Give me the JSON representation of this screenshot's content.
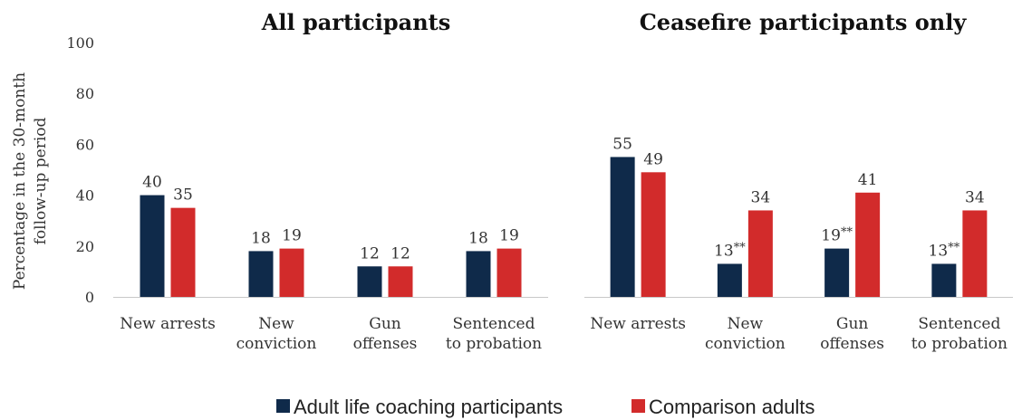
{
  "chart_data": {
    "type": "bar",
    "ylabel": "Percentage in the 30-month follow-up period",
    "ylim": [
      0,
      100
    ],
    "yticks": [
      "0",
      "20",
      "40",
      "60",
      "80",
      "100"
    ],
    "legend_position": "bottom",
    "series": [
      {
        "name": "Adult life coaching participants",
        "color": "#0f2a4a"
      },
      {
        "name": "Comparison adults",
        "color": "#d22b2b"
      }
    ],
    "panels": [
      {
        "title": "All participants",
        "categories": [
          [
            "New arrests"
          ],
          [
            "New",
            "conviction"
          ],
          [
            "Gun",
            "offenses"
          ],
          [
            "Sentenced",
            "to probation"
          ]
        ],
        "values": [
          [
            40,
            18,
            12,
            18
          ],
          [
            35,
            19,
            12,
            19
          ]
        ],
        "labels": [
          [
            "40",
            "18",
            "12",
            "18"
          ],
          [
            "35",
            "19",
            "12",
            "19"
          ]
        ]
      },
      {
        "title": "Ceasefire participants only",
        "categories": [
          [
            "New arrests"
          ],
          [
            "New",
            "conviction"
          ],
          [
            "Gun",
            "offenses"
          ],
          [
            "Sentenced",
            "to probation"
          ]
        ],
        "values": [
          [
            55,
            13,
            19,
            13
          ],
          [
            49,
            34,
            41,
            34
          ]
        ],
        "labels": [
          [
            "55",
            "13**",
            "19**",
            "13**"
          ],
          [
            "49",
            "34",
            "41",
            "34"
          ]
        ]
      }
    ]
  }
}
